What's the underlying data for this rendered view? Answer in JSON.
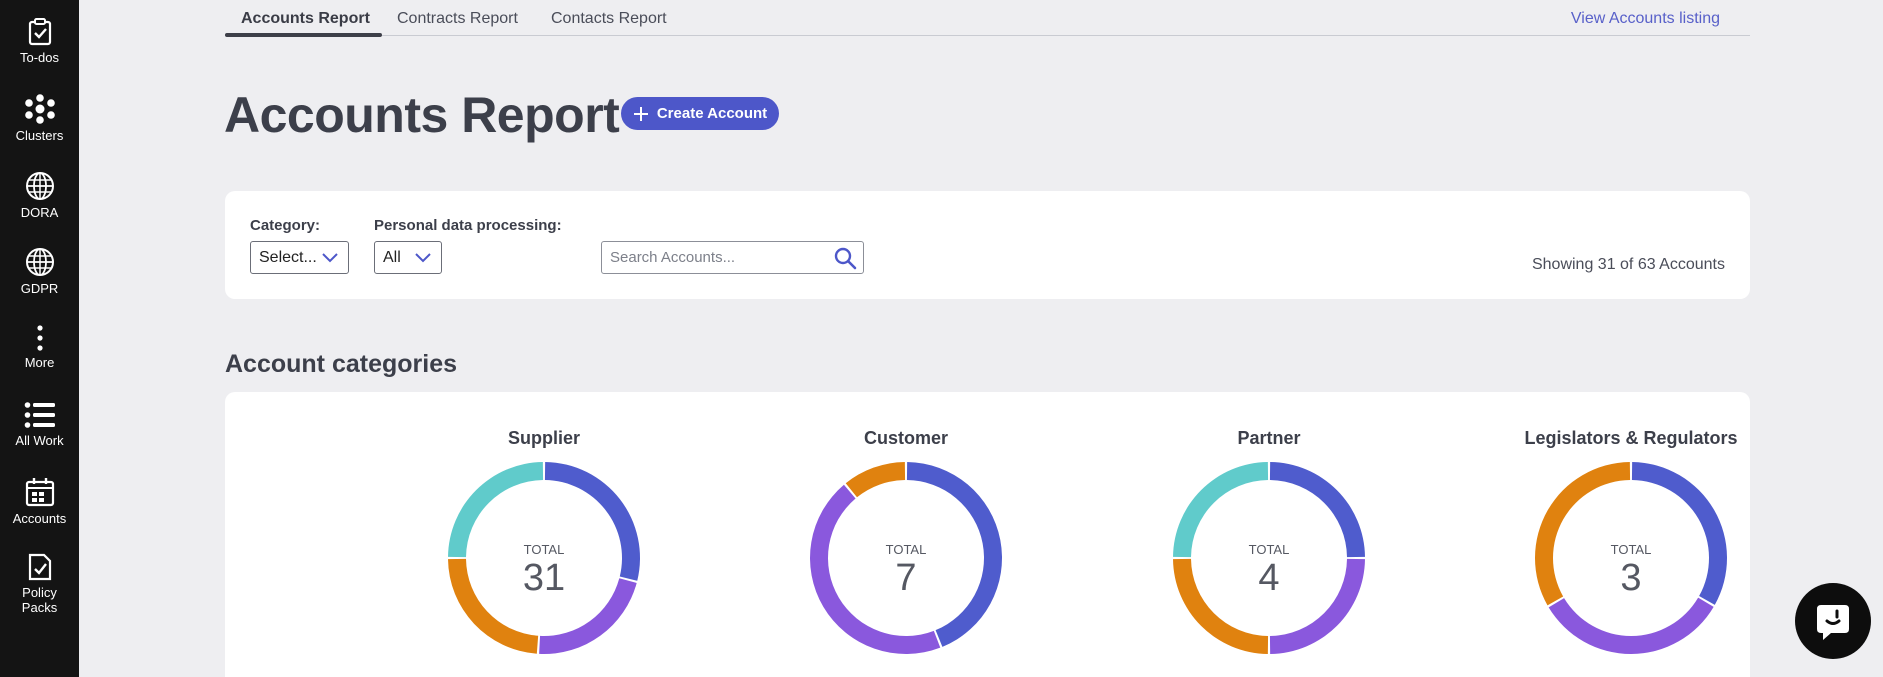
{
  "sidebar": {
    "items": [
      {
        "label": "To-dos",
        "icon": "clipboard-check-icon"
      },
      {
        "label": "Clusters",
        "icon": "clusters-icon"
      },
      {
        "label": "DORA",
        "icon": "globe-icon"
      },
      {
        "label": "GDPR",
        "icon": "globe-icon"
      },
      {
        "label": "More",
        "icon": "more-vertical-icon"
      },
      {
        "label": "All Work",
        "icon": "list-icon"
      },
      {
        "label": "Accounts",
        "icon": "calendar-grid-icon"
      },
      {
        "label": "Policy Packs",
        "icon": "document-check-icon"
      }
    ]
  },
  "tabs": {
    "items": [
      "Accounts Report",
      "Contracts Report",
      "Contacts Report"
    ],
    "link": "View Accounts listing"
  },
  "header": {
    "title": "Accounts Report",
    "create_button": "Create Account"
  },
  "filters": {
    "category_label": "Category:",
    "category_value": "Select...",
    "personal_label": "Personal data processing:",
    "personal_value": "All",
    "search_placeholder": "Search Accounts...",
    "showing": "Showing 31 of 63 Accounts"
  },
  "categories": {
    "title": "Account categories",
    "total_label": "TOTAL",
    "colors": {
      "blue": "#4f5ccd",
      "purple": "#8a58dd",
      "orange": "#e0820f",
      "teal": "#60cbcb"
    },
    "charts": [
      {
        "title": "Supplier",
        "total": "31",
        "fractions": [
          0.29,
          0.22,
          0.24,
          0.25
        ],
        "colors": [
          "#4f5ccd",
          "#8a58dd",
          "#e0820f",
          "#60cbcb"
        ]
      },
      {
        "title": "Customer",
        "total": "7",
        "fractions": [
          0.44,
          0.45,
          0.11
        ],
        "colors": [
          "#4f5ccd",
          "#8a58dd",
          "#e0820f"
        ]
      },
      {
        "title": "Partner",
        "total": "4",
        "fractions": [
          0.25,
          0.25,
          0.25,
          0.25
        ],
        "colors": [
          "#4f5ccd",
          "#8a58dd",
          "#e0820f",
          "#60cbcb"
        ]
      },
      {
        "title": "Legislators & Regulators",
        "total": "3",
        "fractions": [
          0.333,
          0.333,
          0.334
        ],
        "colors": [
          "#4f5ccd",
          "#8a58dd",
          "#e0820f"
        ]
      }
    ]
  },
  "help": {
    "icon": "chat-help-icon"
  }
}
